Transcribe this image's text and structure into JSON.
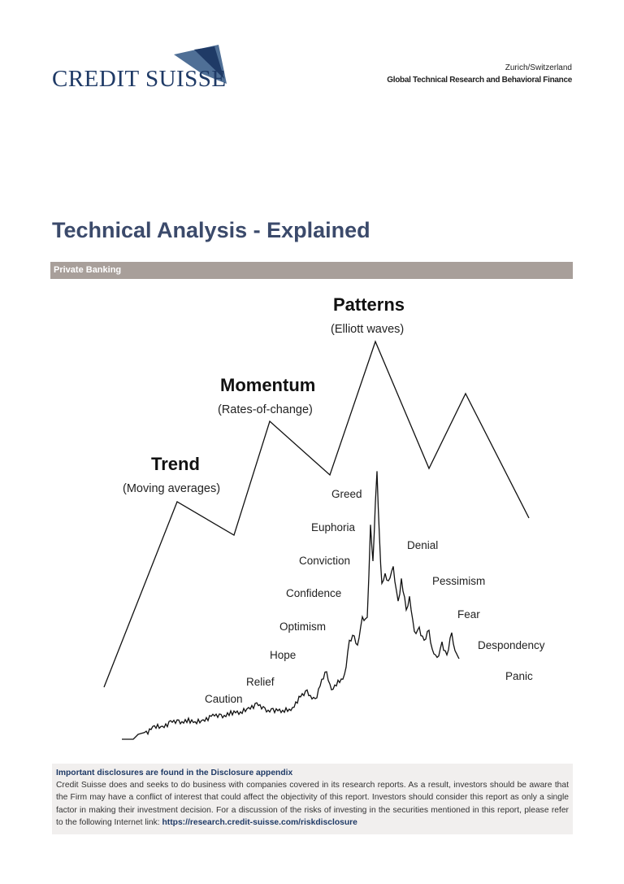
{
  "header": {
    "logo_text": "CREDIT SUISSE",
    "location": "Zurich/Switzerland",
    "department": "Global Technical Research and Behavioral Finance"
  },
  "title": "Technical Analysis - Explained",
  "band_label": "Private Banking",
  "diagram": {
    "levels": [
      {
        "title": "Trend",
        "subtitle": "(Moving averages)"
      },
      {
        "title": "Momentum",
        "subtitle": "(Rates-of-change)"
      },
      {
        "title": "Patterns",
        "subtitle": "(Elliott waves)"
      }
    ],
    "sentiment": [
      "Caution",
      "Relief",
      "Hope",
      "Optimism",
      "Confidence",
      "Conviction",
      "Euphoria",
      "Greed",
      "Denial",
      "Pessimism",
      "Fear",
      "Despondency",
      "Panic"
    ]
  },
  "disclosure": {
    "heading": "Important disclosures are found in the Disclosure appendix",
    "body": "Credit Suisse does and seeks to do business with companies covered in its research reports. As a result, investors should be aware that the Firm may have a conflict of interest that could affect the objectivity of this report. Investors should consider this report as only a single factor in making their investment decision. For a discussion of the risks of investing in the securities mentioned in this report, please refer to the following Internet link: ",
    "link": "https://research.credit-suisse.com/riskdisclosure"
  },
  "colors": {
    "brand": "#1f3a66",
    "title": "#3b4a6b",
    "band": "#a89f9a",
    "disclosure_bg": "#f1efee"
  }
}
